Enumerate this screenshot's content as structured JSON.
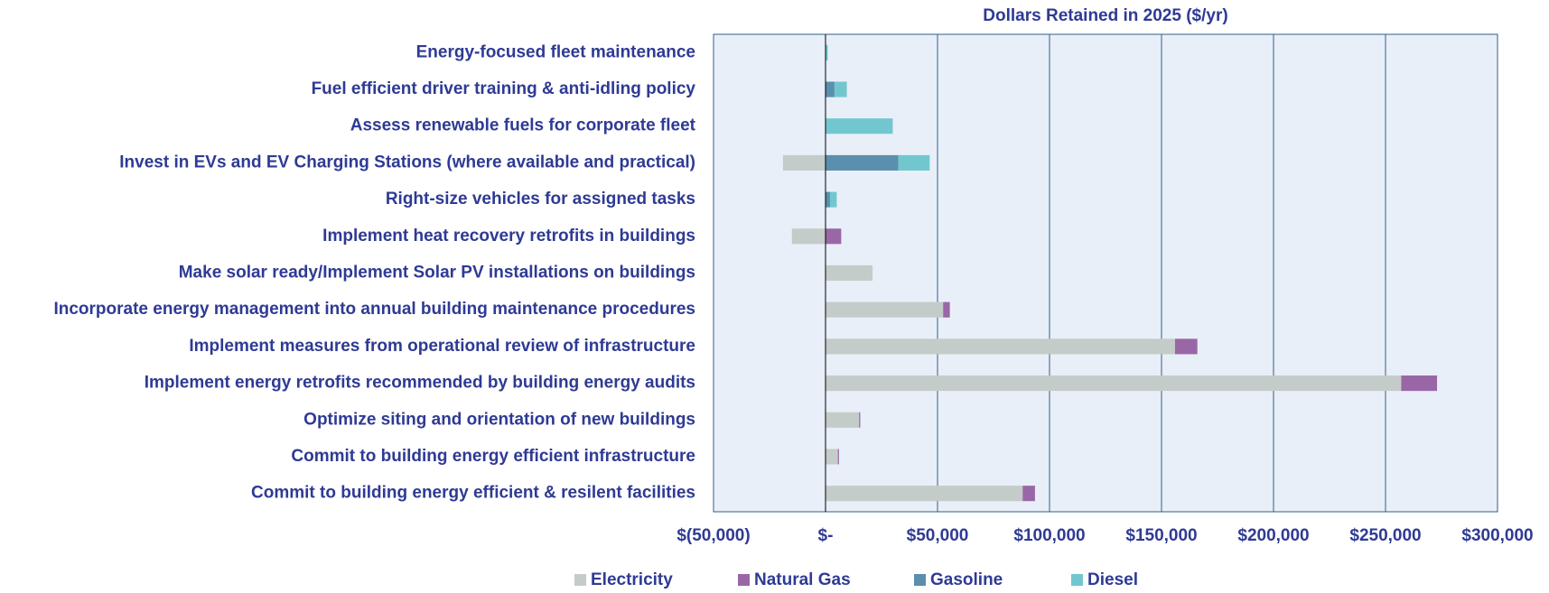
{
  "chart_data": {
    "type": "stacked_barh",
    "title": "Dollars Retained in 2025 ($/yr)",
    "categories": [
      "Energy-focused fleet maintenance",
      "Fuel efficient driver training & anti-idling policy",
      "Assess renewable fuels for corporate fleet",
      "Invest in EVs and EV Charging Stations (where available and practical)",
      "Right-size vehicles for assigned tasks",
      "Implement heat recovery retrofits in buildings",
      "Make solar ready/Implement Solar PV installations on buildings",
      "Incorporate energy management into annual building maintenance procedures",
      "Implement measures from operational review of infrastructure",
      "Implement energy retrofits recommended by building energy audits",
      "Optimize siting and orientation of new buildings",
      "Commit to building energy efficient infrastructure",
      "Commit to building energy efficient & resilent facilities"
    ],
    "series": [
      {
        "name": "Electricity",
        "color": "#c4ccc9",
        "values": [
          0,
          0,
          0,
          -19000,
          0,
          -15000,
          21000,
          52500,
          156000,
          257000,
          15000,
          5500,
          88000
        ]
      },
      {
        "name": "Natural Gas",
        "color": "#9a67a6",
        "values": [
          0,
          0,
          0,
          0,
          0,
          7000,
          0,
          3000,
          10000,
          16000,
          500,
          500,
          5500
        ]
      },
      {
        "name": "Gasoline",
        "color": "#5a8fae",
        "values": [
          0,
          4000,
          0,
          32500,
          2000,
          0,
          0,
          0,
          0,
          0,
          0,
          0,
          0
        ]
      },
      {
        "name": "Diesel",
        "color": "#72c7cf",
        "values": [
          1000,
          5500,
          30000,
          14000,
          3000,
          0,
          0,
          0,
          0,
          0,
          0,
          0,
          0
        ]
      }
    ],
    "xlim": [
      -50000,
      300000
    ],
    "xticks": [
      {
        "value": -50000,
        "label": "$(50,000)"
      },
      {
        "value": 0,
        "label": "$-"
      },
      {
        "value": 50000,
        "label": "$50,000"
      },
      {
        "value": 100000,
        "label": "$100,000"
      },
      {
        "value": 150000,
        "label": "$150,000"
      },
      {
        "value": 200000,
        "label": "$200,000"
      },
      {
        "value": 250000,
        "label": "$250,000"
      },
      {
        "value": 300000,
        "label": "$300,000"
      }
    ],
    "grid": true,
    "legend": "bottom"
  }
}
